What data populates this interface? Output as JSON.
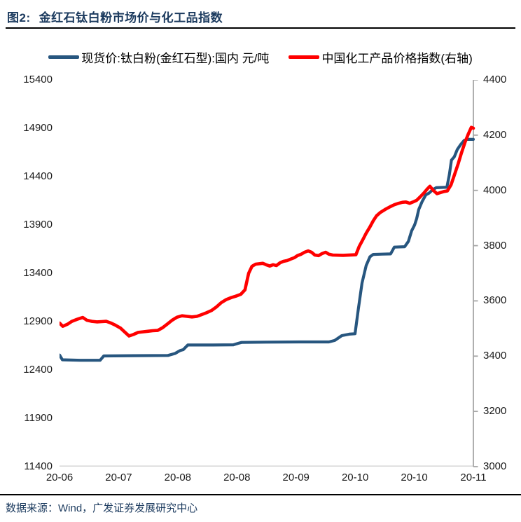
{
  "title": {
    "prefix": "图2:",
    "text": "金红石钛白粉市场价与化工品指数"
  },
  "legend": [
    {
      "label": "现货价:钛白粉(金红石型):国内 元/吨",
      "color": "#27567F"
    },
    {
      "label": "中国化工产品价格指数(右轴)",
      "color": "#FF0000"
    }
  ],
  "footer": {
    "source": "数据来源：Wind，广发证券发展研究中心"
  },
  "colors": {
    "blue_line": "#27567F",
    "red_line": "#FF0000",
    "title_text": "#1B3A5E",
    "axis_text": "#1A1A1A",
    "bottom_axis_line": "#D9D9D9",
    "right_axis_line": "#A6A6A6",
    "divider": "#000000"
  },
  "chart_data": {
    "type": "line",
    "title": "金红石钛白粉市场价与化工品指数",
    "xlabel": "",
    "ylabel_left": "现货价:钛白粉(金红石型):国内 元/吨",
    "ylabel_right": "中国化工产品价格指数(右轴)",
    "grid": false,
    "legend_position": "top",
    "x_tick_labels": [
      "20-06",
      "20-07",
      "20-08",
      "20-08",
      "20-09",
      "20-10",
      "20-10",
      "20-11"
    ],
    "left_axis_ticks": [
      "15400",
      "14900",
      "14400",
      "13900",
      "13400",
      "12900",
      "12400",
      "11900",
      "11400"
    ],
    "right_axis_ticks": [
      "4400",
      "4200",
      "4000",
      "3800",
      "3600",
      "3400",
      "3200",
      "3000"
    ],
    "left_ylim": [
      11400,
      15400
    ],
    "right_ylim": [
      3000,
      4400
    ],
    "x_range": "2020-06 to 2020-11, x encoded as fraction 0-1 of timeline",
    "series": [
      {
        "name": "现货价:钛白粉(金红石型):国内 元/吨",
        "axis": "left",
        "color": "#27567F",
        "points": [
          [
            0.0,
            12555
          ],
          [
            0.007,
            12505
          ],
          [
            0.05,
            12500
          ],
          [
            0.098,
            12500
          ],
          [
            0.107,
            12545
          ],
          [
            0.18,
            12548
          ],
          [
            0.262,
            12550
          ],
          [
            0.279,
            12570
          ],
          [
            0.291,
            12600
          ],
          [
            0.299,
            12610
          ],
          [
            0.31,
            12658
          ],
          [
            0.37,
            12658
          ],
          [
            0.42,
            12660
          ],
          [
            0.431,
            12675
          ],
          [
            0.44,
            12685
          ],
          [
            0.5,
            12688
          ],
          [
            0.58,
            12690
          ],
          [
            0.651,
            12690
          ],
          [
            0.665,
            12705
          ],
          [
            0.682,
            12755
          ],
          [
            0.7,
            12770
          ],
          [
            0.714,
            12775
          ],
          [
            0.722,
            13030
          ],
          [
            0.731,
            13300
          ],
          [
            0.741,
            13480
          ],
          [
            0.75,
            13570
          ],
          [
            0.758,
            13595
          ],
          [
            0.78,
            13598
          ],
          [
            0.8,
            13600
          ],
          [
            0.809,
            13670
          ],
          [
            0.834,
            13675
          ],
          [
            0.843,
            13730
          ],
          [
            0.851,
            13840
          ],
          [
            0.858,
            13900
          ],
          [
            0.863,
            13965
          ],
          [
            0.868,
            14060
          ],
          [
            0.876,
            14140
          ],
          [
            0.885,
            14210
          ],
          [
            0.893,
            14230
          ],
          [
            0.902,
            14265
          ],
          [
            0.91,
            14285
          ],
          [
            0.936,
            14290
          ],
          [
            0.942,
            14420
          ],
          [
            0.947,
            14570
          ],
          [
            0.954,
            14605
          ],
          [
            0.961,
            14680
          ],
          [
            0.969,
            14730
          ],
          [
            0.978,
            14775
          ],
          [
            0.985,
            14785
          ],
          [
            1.0,
            14785
          ]
        ]
      },
      {
        "name": "中国化工产品价格指数(右轴)",
        "axis": "right",
        "color": "#FF0000",
        "points": [
          [
            0.0,
            3520
          ],
          [
            0.008,
            3508
          ],
          [
            0.02,
            3516
          ],
          [
            0.03,
            3526
          ],
          [
            0.042,
            3533
          ],
          [
            0.056,
            3540
          ],
          [
            0.066,
            3530
          ],
          [
            0.078,
            3526
          ],
          [
            0.09,
            3524
          ],
          [
            0.102,
            3525
          ],
          [
            0.113,
            3526
          ],
          [
            0.124,
            3520
          ],
          [
            0.135,
            3512
          ],
          [
            0.147,
            3502
          ],
          [
            0.157,
            3488
          ],
          [
            0.168,
            3473
          ],
          [
            0.178,
            3478
          ],
          [
            0.19,
            3486
          ],
          [
            0.201,
            3488
          ],
          [
            0.213,
            3490
          ],
          [
            0.225,
            3492
          ],
          [
            0.237,
            3493
          ],
          [
            0.249,
            3503
          ],
          [
            0.261,
            3517
          ],
          [
            0.272,
            3530
          ],
          [
            0.284,
            3541
          ],
          [
            0.296,
            3546
          ],
          [
            0.308,
            3544
          ],
          [
            0.32,
            3542
          ],
          [
            0.332,
            3544
          ],
          [
            0.343,
            3550
          ],
          [
            0.355,
            3557
          ],
          [
            0.367,
            3565
          ],
          [
            0.379,
            3578
          ],
          [
            0.391,
            3594
          ],
          [
            0.403,
            3605
          ],
          [
            0.415,
            3612
          ],
          [
            0.426,
            3617
          ],
          [
            0.438,
            3624
          ],
          [
            0.448,
            3640
          ],
          [
            0.457,
            3700
          ],
          [
            0.465,
            3725
          ],
          [
            0.474,
            3733
          ],
          [
            0.491,
            3736
          ],
          [
            0.499,
            3731
          ],
          [
            0.508,
            3726
          ],
          [
            0.516,
            3731
          ],
          [
            0.524,
            3728
          ],
          [
            0.533,
            3738
          ],
          [
            0.541,
            3743
          ],
          [
            0.55,
            3746
          ],
          [
            0.558,
            3751
          ],
          [
            0.567,
            3756
          ],
          [
            0.575,
            3764
          ],
          [
            0.584,
            3769
          ],
          [
            0.592,
            3776
          ],
          [
            0.601,
            3781
          ],
          [
            0.609,
            3776
          ],
          [
            0.617,
            3766
          ],
          [
            0.626,
            3764
          ],
          [
            0.634,
            3771
          ],
          [
            0.643,
            3776
          ],
          [
            0.651,
            3769
          ],
          [
            0.66,
            3766
          ],
          [
            0.685,
            3765
          ],
          [
            0.716,
            3767
          ],
          [
            0.724,
            3797
          ],
          [
            0.733,
            3822
          ],
          [
            0.741,
            3845
          ],
          [
            0.75,
            3868
          ],
          [
            0.758,
            3890
          ],
          [
            0.766,
            3908
          ],
          [
            0.775,
            3920
          ],
          [
            0.788,
            3932
          ],
          [
            0.799,
            3941
          ],
          [
            0.809,
            3948
          ],
          [
            0.819,
            3953
          ],
          [
            0.829,
            3957
          ],
          [
            0.837,
            3958
          ],
          [
            0.846,
            3953
          ],
          [
            0.854,
            3958
          ],
          [
            0.863,
            3964
          ],
          [
            0.871,
            3976
          ],
          [
            0.88,
            3990
          ],
          [
            0.888,
            4004
          ],
          [
            0.895,
            4015
          ],
          [
            0.903,
            4000
          ],
          [
            0.912,
            3988
          ],
          [
            0.92,
            3992
          ],
          [
            0.929,
            3996
          ],
          [
            0.937,
            3998
          ],
          [
            0.946,
            4020
          ],
          [
            0.954,
            4055
          ],
          [
            0.963,
            4095
          ],
          [
            0.971,
            4135
          ],
          [
            0.98,
            4175
          ],
          [
            0.988,
            4205
          ],
          [
            0.995,
            4228
          ],
          [
            1.0,
            4225
          ]
        ]
      }
    ]
  }
}
